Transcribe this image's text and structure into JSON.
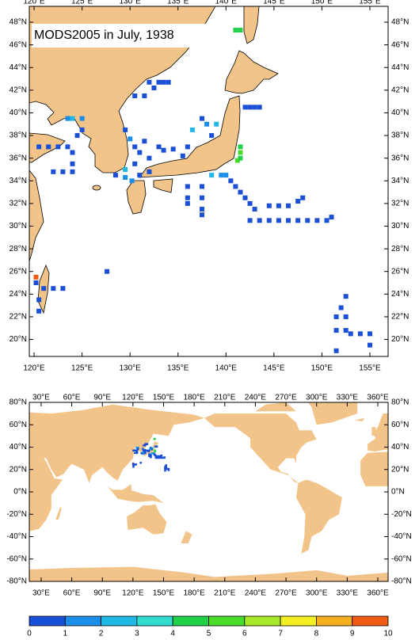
{
  "title": "MODS2005 in July, 1938",
  "regional_map": {
    "xlim": [
      119.5,
      156.9
    ],
    "ylim": [
      18.5,
      49.4
    ],
    "xticks": [
      {
        "value": 120,
        "label": "120°E"
      },
      {
        "value": 125,
        "label": "125°E"
      },
      {
        "value": 130,
        "label": "130°E"
      },
      {
        "value": 135,
        "label": "135°E"
      },
      {
        "value": 140,
        "label": "140°E"
      },
      {
        "value": 145,
        "label": "145°E"
      },
      {
        "value": 150,
        "label": "150°E"
      },
      {
        "value": 155,
        "label": "155°E"
      }
    ],
    "yticks": [
      {
        "value": 20,
        "label": "20°N"
      },
      {
        "value": 22,
        "label": "22°N"
      },
      {
        "value": 24,
        "label": "24°N"
      },
      {
        "value": 26,
        "label": "26°N"
      },
      {
        "value": 28,
        "label": "28°N"
      },
      {
        "value": 30,
        "label": "30°N"
      },
      {
        "value": 32,
        "label": "32°N"
      },
      {
        "value": 34,
        "label": "34°N"
      },
      {
        "value": 36,
        "label": "36°N"
      },
      {
        "value": 38,
        "label": "38°N"
      },
      {
        "value": 40,
        "label": "40°N"
      },
      {
        "value": 42,
        "label": "42°N"
      },
      {
        "value": 44,
        "label": "44°N"
      },
      {
        "value": 46,
        "label": "46°N"
      },
      {
        "value": 48,
        "label": "48°N"
      }
    ]
  },
  "global_map": {
    "xlim": [
      18.4,
      370.1
    ],
    "ylim": [
      -80,
      80
    ],
    "xticks": [
      {
        "value": 30,
        "label": "30°E"
      },
      {
        "value": 60,
        "label": "60°E"
      },
      {
        "value": 90,
        "label": "90°E"
      },
      {
        "value": 120,
        "label": "120°E"
      },
      {
        "value": 150,
        "label": "150°E"
      },
      {
        "value": 180,
        "label": "180°E"
      },
      {
        "value": 210,
        "label": "210°E"
      },
      {
        "value": 240,
        "label": "240°E"
      },
      {
        "value": 270,
        "label": "270°E"
      },
      {
        "value": 300,
        "label": "300°E"
      },
      {
        "value": 330,
        "label": "330°E"
      },
      {
        "value": 360,
        "label": "360°E"
      }
    ],
    "yticks": [
      {
        "value": -80,
        "label": "-80°N"
      },
      {
        "value": -60,
        "label": "-60°N"
      },
      {
        "value": -40,
        "label": "-40°N"
      },
      {
        "value": -20,
        "label": "-20°N"
      },
      {
        "value": 0,
        "label": "0°N"
      },
      {
        "value": 20,
        "label": "20°N"
      },
      {
        "value": 40,
        "label": "40°N"
      },
      {
        "value": 60,
        "label": "60°N"
      },
      {
        "value": 80,
        "label": "80°N"
      }
    ]
  },
  "observations": {
    "lon": [
      141.0,
      141.5,
      132.0,
      133.0,
      130.5,
      131.5,
      132.5,
      133.5,
      134.0,
      142.0,
      142.5,
      143.0,
      143.5,
      123.5,
      124.0,
      125.0,
      120.5,
      121.5,
      122.5,
      123.5,
      124.0,
      124.0,
      124.0,
      123.0,
      122.0,
      124.5,
      125.0,
      129.5,
      130.0,
      130.5,
      131.5,
      131.0,
      130.5,
      132.0,
      132.0,
      131.0,
      129.5,
      129.5,
      130.2,
      128.5,
      133.0,
      133.5,
      134.5,
      135.5,
      136.0,
      136.5,
      137.5,
      138.0,
      139.0,
      138.5,
      141.5,
      141.5,
      141.2,
      141.5,
      140.0,
      140.5,
      141.0,
      141.5,
      142.0,
      142.5,
      143.0,
      142.5,
      143.5,
      144.5,
      145.5,
      146.5,
      147.5,
      148.5,
      149.5,
      150.5,
      151.0,
      144.5,
      145.5,
      146.5,
      147.5,
      148.0,
      137.5,
      137.5,
      137.5,
      137.5,
      136.0,
      136.0,
      136.0,
      138.5,
      139.5,
      121.0,
      122.0,
      123.0,
      120.2,
      120.2,
      120.5,
      120.5,
      152.5,
      152.0,
      151.5,
      152.5,
      151.5,
      152.5,
      153.0,
      154.0,
      155.0,
      155.0,
      151.5,
      127.6
    ],
    "lat": [
      47.3,
      47.3,
      42.7,
      42.7,
      41.5,
      41.5,
      42.2,
      42.7,
      42.7,
      40.5,
      40.5,
      40.5,
      40.5,
      39.5,
      39.5,
      39.5,
      37.0,
      37.0,
      37.0,
      37.0,
      36.5,
      35.5,
      34.8,
      34.8,
      34.8,
      38.0,
      38.5,
      38.5,
      37.7,
      37.0,
      37.5,
      36.5,
      35.5,
      36.0,
      34.8,
      34.5,
      35.0,
      34.3,
      34.0,
      34.5,
      37.0,
      36.7,
      36.8,
      36.2,
      37.0,
      38.5,
      39.5,
      39.0,
      39.0,
      38.0,
      37.0,
      36.5,
      35.8,
      36.0,
      34.5,
      34.0,
      33.5,
      33.0,
      32.5,
      32.0,
      31.5,
      30.5,
      30.5,
      30.5,
      30.5,
      30.5,
      30.5,
      30.5,
      30.5,
      30.5,
      30.8,
      31.8,
      31.8,
      31.8,
      32.2,
      32.5,
      33.5,
      32.5,
      31.5,
      31.0,
      33.5,
      32.5,
      32.0,
      34.5,
      34.5,
      24.5,
      24.5,
      24.5,
      25.5,
      25.0,
      23.5,
      22.5,
      23.8,
      22.8,
      22.0,
      22.0,
      20.8,
      20.8,
      20.5,
      20.5,
      20.5,
      19.5,
      19.0,
      26.0
    ],
    "values": [
      4.5,
      4.5,
      0.5,
      0.5,
      0.5,
      0.5,
      0.5,
      0.5,
      0.5,
      0.5,
      0.5,
      0.5,
      0.5,
      1.5,
      2.5,
      1.5,
      0.5,
      0.5,
      0.5,
      0.5,
      0.5,
      0.5,
      0.5,
      0.5,
      0.5,
      0.5,
      0.5,
      0.5,
      1.5,
      0.5,
      0.5,
      0.5,
      0.5,
      0.5,
      0.5,
      0.5,
      2.5,
      1.5,
      1.5,
      0.5,
      0.5,
      0.5,
      0.5,
      0.5,
      0.5,
      2.5,
      0.5,
      1.5,
      2.5,
      0.5,
      4.5,
      5.5,
      5.0,
      4.0,
      1.5,
      0.5,
      0.5,
      0.5,
      0.5,
      0.5,
      0.5,
      0.5,
      0.5,
      0.5,
      0.5,
      0.5,
      0.5,
      0.5,
      0.5,
      0.5,
      0.5,
      0.5,
      0.5,
      0.5,
      0.5,
      0.5,
      0.5,
      0.5,
      0.5,
      0.5,
      0.5,
      0.5,
      0.5,
      2.5,
      1.5,
      0.5,
      0.5,
      0.5,
      9.5,
      0.5,
      0.5,
      0.5,
      0.5,
      0.5,
      0.5,
      0.5,
      0.5,
      0.5,
      0.5,
      0.5,
      0.5,
      0.5,
      0.5,
      0.5
    ]
  },
  "colorbar": {
    "ticks": [
      0,
      1,
      2,
      3,
      4,
      5,
      6,
      7,
      8,
      9,
      10
    ],
    "colors": [
      "#1a4fd6",
      "#1a8ee8",
      "#22b8e6",
      "#30dcd0",
      "#22d04a",
      "#4adc2a",
      "#a8e82a",
      "#f2f020",
      "#f6b022",
      "#f05a14"
    ]
  }
}
